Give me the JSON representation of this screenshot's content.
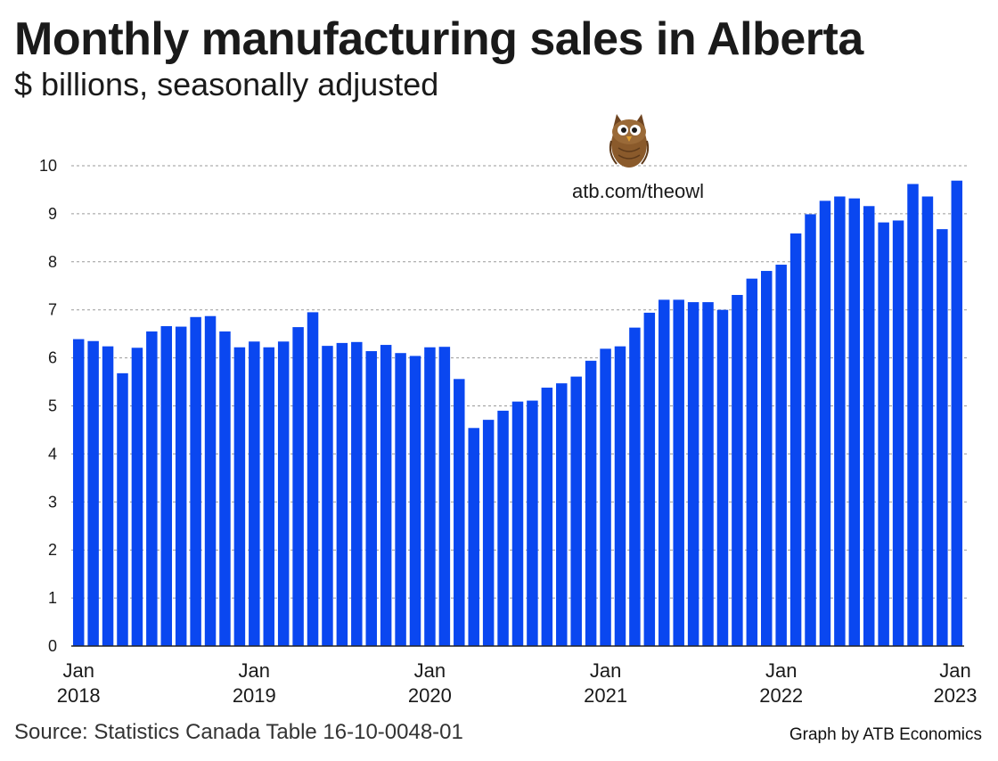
{
  "header": {
    "title": "Monthly manufacturing sales in Alberta",
    "subtitle": "$ billions, seasonally adjusted"
  },
  "footer": {
    "source": "Source: Statistics Canada Table 16-10-0048-01",
    "credit": "Graph by ATB Economics"
  },
  "annotation": {
    "link_text": "atb.com/theowl",
    "logo_icon": "owl-icon"
  },
  "colors": {
    "bar": "#0a47f0",
    "grid": "#9a9a9a",
    "axis": "#222222"
  },
  "chart_data": {
    "type": "bar",
    "title": "Monthly manufacturing sales in Alberta",
    "subtitle": "$ billions, seasonally adjusted",
    "xlabel": "",
    "ylabel": "",
    "ylim": [
      0,
      10
    ],
    "yticks": [
      0,
      1,
      2,
      3,
      4,
      5,
      6,
      7,
      8,
      9,
      10
    ],
    "grid": "horizontal-dotted",
    "x_tick_labels": [
      {
        "index": 0,
        "month": "Jan",
        "year": "2018"
      },
      {
        "index": 12,
        "month": "Jan",
        "year": "2019"
      },
      {
        "index": 24,
        "month": "Jan",
        "year": "2020"
      },
      {
        "index": 36,
        "month": "Jan",
        "year": "2021"
      },
      {
        "index": 48,
        "month": "Jan",
        "year": "2022"
      },
      {
        "index": 60,
        "month": "Jan",
        "year": "2023"
      }
    ],
    "categories": [
      "2018-01",
      "2018-02",
      "2018-03",
      "2018-04",
      "2018-05",
      "2018-06",
      "2018-07",
      "2018-08",
      "2018-09",
      "2018-10",
      "2018-11",
      "2018-12",
      "2019-01",
      "2019-02",
      "2019-03",
      "2019-04",
      "2019-05",
      "2019-06",
      "2019-07",
      "2019-08",
      "2019-09",
      "2019-10",
      "2019-11",
      "2019-12",
      "2020-01",
      "2020-02",
      "2020-03",
      "2020-04",
      "2020-05",
      "2020-06",
      "2020-07",
      "2020-08",
      "2020-09",
      "2020-10",
      "2020-11",
      "2020-12",
      "2021-01",
      "2021-02",
      "2021-03",
      "2021-04",
      "2021-05",
      "2021-06",
      "2021-07",
      "2021-08",
      "2021-09",
      "2021-10",
      "2021-11",
      "2021-12",
      "2022-01",
      "2022-02",
      "2022-03",
      "2022-04",
      "2022-05",
      "2022-06",
      "2022-07",
      "2022-08",
      "2022-09",
      "2022-10",
      "2022-11",
      "2022-12",
      "2023-01"
    ],
    "values": [
      6.39,
      6.35,
      6.24,
      5.68,
      6.21,
      6.55,
      6.66,
      6.65,
      6.85,
      6.87,
      6.55,
      6.22,
      6.34,
      6.22,
      6.34,
      6.64,
      6.95,
      6.25,
      6.31,
      6.33,
      6.14,
      6.27,
      6.1,
      6.04,
      6.22,
      6.23,
      5.56,
      4.54,
      4.71,
      4.9,
      5.09,
      5.11,
      5.38,
      5.47,
      5.61,
      5.94,
      6.19,
      6.24,
      6.63,
      6.94,
      7.21,
      7.21,
      7.16,
      7.16,
      7.0,
      7.31,
      7.65,
      7.81,
      7.94,
      8.59,
      8.99,
      9.27,
      9.36,
      9.32,
      9.16,
      8.82,
      8.86,
      9.62,
      9.36,
      8.68,
      9.69
    ]
  }
}
